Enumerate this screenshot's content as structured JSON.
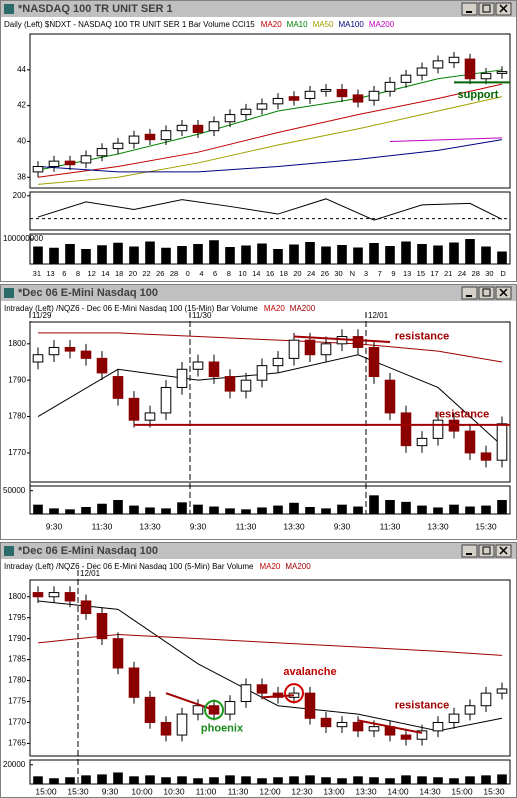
{
  "chart_data": [
    {
      "type": "candlestick",
      "title": "*NASDAQ 100 TR UNIT SER 1",
      "header": "Daily (Left)  $NDXT - NASDAQ 100 TR UNIT SER 1  Bar  Volume  CCI15",
      "candles": {
        "open": [
          38.3,
          38.6,
          38.9,
          38.8,
          39.2,
          39.6,
          39.9,
          40.4,
          40.1,
          40.6,
          40.9,
          40.6,
          41.1,
          41.5,
          41.8,
          42.1,
          42.5,
          42.4,
          42.8,
          42.9,
          42.6,
          42.3,
          42.8,
          43.3,
          43.7,
          44.1,
          44.4,
          44.6,
          43.5,
          43.8
        ],
        "high": [
          38.9,
          39.2,
          39.2,
          39.5,
          39.9,
          40.2,
          40.6,
          40.7,
          40.9,
          41.2,
          41.2,
          41.4,
          41.8,
          42.1,
          42.4,
          42.7,
          42.8,
          43.1,
          43.2,
          43.2,
          42.9,
          43.1,
          43.6,
          44.0,
          44.4,
          44.8,
          45.0,
          44.9,
          44.1,
          44.2
        ],
        "low": [
          38.0,
          38.3,
          38.4,
          38.5,
          38.9,
          39.3,
          39.6,
          39.8,
          39.8,
          40.3,
          40.2,
          40.3,
          40.8,
          41.2,
          41.5,
          41.8,
          42.0,
          42.1,
          42.5,
          42.2,
          41.9,
          42.0,
          42.5,
          43.0,
          43.4,
          43.8,
          44.1,
          43.2,
          43.2,
          43.5
        ],
        "close": [
          38.6,
          38.9,
          38.7,
          39.2,
          39.6,
          39.9,
          40.3,
          40.1,
          40.6,
          40.9,
          40.5,
          41.1,
          41.5,
          41.8,
          42.1,
          42.4,
          42.3,
          42.8,
          42.9,
          42.5,
          42.2,
          42.8,
          43.3,
          43.7,
          44.1,
          44.5,
          44.7,
          43.5,
          43.8,
          43.9
        ]
      },
      "series": [
        {
          "name": "MA20",
          "color": "#c00000",
          "x": [
            0,
            5,
            10,
            15,
            20,
            25,
            29
          ],
          "values": [
            38.0,
            38.6,
            39.4,
            40.5,
            41.5,
            42.4,
            43.2
          ]
        },
        {
          "name": "MA10",
          "color": "#008000",
          "x": [
            0,
            5,
            10,
            15,
            20,
            25,
            29
          ],
          "values": [
            38.4,
            39.3,
            40.4,
            41.7,
            42.4,
            43.5,
            44.0
          ]
        },
        {
          "name": "MA50",
          "color": "#a0a000",
          "x": [
            0,
            5,
            10,
            15,
            20,
            25,
            29
          ],
          "values": [
            37.6,
            38.0,
            38.8,
            39.8,
            40.7,
            41.7,
            42.5
          ]
        },
        {
          "name": "MA100",
          "color": "#000080",
          "x": [
            0,
            5,
            10,
            15,
            20,
            25,
            29
          ],
          "values": [
            38.6,
            38.3,
            38.3,
            38.6,
            39.0,
            39.5,
            40.1
          ]
        },
        {
          "name": "MA200",
          "color": "#c000c0",
          "x": [
            22,
            29
          ],
          "values": [
            40.0,
            40.2
          ]
        }
      ],
      "ylim": [
        37.4,
        46
      ],
      "yticks": [
        38,
        40,
        42,
        44
      ],
      "cci": {
        "x": [
          0,
          3,
          6,
          9,
          12,
          15,
          18,
          21,
          24,
          27,
          29
        ],
        "values": [
          -80,
          120,
          20,
          150,
          60,
          -40,
          160,
          -120,
          80,
          100,
          -110
        ],
        "ylim": [
          -250,
          250
        ],
        "yticks": [
          200
        ],
        "dashed": -100
      },
      "volume": [
        70000000,
        65000000,
        80000000,
        60000000,
        75000000,
        85000000,
        70000000,
        90000000,
        65000000,
        72000000,
        80000000,
        95000000,
        68000000,
        74000000,
        82000000,
        60000000,
        78000000,
        88000000,
        70000000,
        76000000,
        66000000,
        84000000,
        72000000,
        90000000,
        80000000,
        74000000,
        86000000,
        100000000,
        70000000,
        50000000
      ],
      "volume_ylim": [
        0,
        120000000
      ],
      "volume_ticks": [
        100000000
      ],
      "x_labels": [
        "31",
        "13",
        "6",
        "8",
        "12",
        "14",
        "18",
        "20",
        "22",
        "26",
        "28",
        "0",
        "4",
        "6",
        "8",
        "10",
        "14",
        "16",
        "18",
        "20",
        "24",
        "26",
        "30",
        "N",
        "3",
        "7",
        "9",
        "13",
        "15",
        "17",
        "21",
        "24",
        "28",
        "30",
        "D"
      ],
      "date_labels": [],
      "lines": [
        {
          "x": [
            26,
            29.5
          ],
          "y": [
            43.3,
            43.3
          ],
          "color": "#006400"
        }
      ],
      "annotations": [
        {
          "text": "support",
          "x": 27.5,
          "y": 42.6,
          "color": "#006400"
        }
      ],
      "circles": []
    },
    {
      "type": "candlestick",
      "title": "*Dec 06  E-Mini Nasdaq 100",
      "header": "Intraday (Left)  /NQZ6 - Dec 06  E-Mini Nasdaq 100 (15-Min)  Bar  Volume",
      "candles": {
        "open": [
          1795,
          1797,
          1799,
          1798,
          1796,
          1791,
          1785,
          1779,
          1781,
          1788,
          1793,
          1795,
          1791,
          1787,
          1790,
          1794,
          1796,
          1801,
          1797,
          1800,
          1802,
          1799,
          1790,
          1781,
          1772,
          1774,
          1779,
          1776,
          1770,
          1768
        ],
        "high": [
          1799,
          1801,
          1801,
          1800,
          1798,
          1793,
          1787,
          1783,
          1790,
          1795,
          1797,
          1797,
          1793,
          1792,
          1796,
          1798,
          1803,
          1803,
          1802,
          1804,
          1804,
          1801,
          1792,
          1783,
          1776,
          1781,
          1781,
          1778,
          1772,
          1780
        ],
        "low": [
          1793,
          1795,
          1796,
          1794,
          1790,
          1783,
          1777,
          1777,
          1779,
          1786,
          1791,
          1789,
          1785,
          1785,
          1788,
          1792,
          1794,
          1795,
          1795,
          1798,
          1797,
          1789,
          1779,
          1770,
          1770,
          1772,
          1774,
          1768,
          1766,
          1766
        ],
        "close": [
          1797,
          1799,
          1798,
          1796,
          1792,
          1785,
          1779,
          1781,
          1788,
          1793,
          1795,
          1791,
          1787,
          1790,
          1794,
          1796,
          1801,
          1797,
          1800,
          1802,
          1799,
          1791,
          1781,
          1772,
          1774,
          1779,
          1776,
          1770,
          1768,
          1778
        ]
      },
      "series": [
        {
          "name": "MA20",
          "color": "#000000",
          "x": [
            0,
            5,
            10,
            15,
            20,
            25,
            29
          ],
          "values": [
            1780,
            1793,
            1790,
            1792,
            1797,
            1788,
            1772
          ]
        },
        {
          "name": "MA200",
          "color": "#a00000",
          "x": [
            0,
            5,
            10,
            15,
            20,
            25,
            29
          ],
          "values": [
            1803,
            1803,
            1802,
            1801,
            1800,
            1798,
            1795
          ]
        }
      ],
      "ylim": [
        1762,
        1806
      ],
      "yticks": [
        1770,
        1780,
        1790,
        1800
      ],
      "volume": [
        20000,
        12000,
        10000,
        15000,
        22000,
        30000,
        18000,
        14000,
        12000,
        25000,
        20000,
        16000,
        12000,
        10000,
        14000,
        18000,
        24000,
        15000,
        12000,
        20000,
        16000,
        40000,
        30000,
        26000,
        18000,
        14000,
        20000,
        16000,
        18000,
        30000
      ],
      "volume_ylim": [
        0,
        60000
      ],
      "volume_ticks": [
        50000
      ],
      "x_labels": [
        "9:30",
        "11:30",
        "13:30",
        "9:30",
        "11:30",
        "13:30",
        "9:30",
        "11:30",
        "13:30",
        "15:30"
      ],
      "date_labels": [
        {
          "label": "11/29",
          "at": 0
        },
        {
          "label": "11/30",
          "at": 10
        },
        {
          "label": "12/01",
          "at": 21
        }
      ],
      "lines": [
        {
          "x": [
            16,
            22
          ],
          "y": [
            1802,
            1800.5
          ],
          "color": "#a00000"
        },
        {
          "x": [
            6,
            29.5
          ],
          "y": [
            1777.7,
            1777.7
          ],
          "color": "#a00000"
        }
      ],
      "annotations": [
        {
          "text": "resistance",
          "x": 24,
          "y": 1802,
          "color": "#a00000"
        },
        {
          "text": "resistance",
          "x": 26.5,
          "y": 1780.5,
          "color": "#a00000"
        }
      ],
      "circles": []
    },
    {
      "type": "candlestick",
      "title": "*Dec 06  E-Mini Nasdaq 100",
      "header": "Intraday (Left)  /NQZ6 - Dec 06  E-Mini Nasdaq 100 (5-Min)  Bar  Volume",
      "candles": {
        "open": [
          1801,
          1800,
          1801,
          1799,
          1796,
          1790,
          1783,
          1776,
          1770,
          1767,
          1772,
          1774,
          1772,
          1775,
          1779,
          1777,
          1776,
          1777,
          1771,
          1769,
          1770,
          1768,
          1769,
          1767,
          1766,
          1768,
          1770,
          1772,
          1774,
          1777
        ],
        "high": [
          1802.5,
          1802.5,
          1802.5,
          1800.5,
          1797.5,
          1791.5,
          1784.5,
          1777.5,
          1771.5,
          1773.5,
          1775.5,
          1775.5,
          1776.5,
          1780.5,
          1780.5,
          1778.5,
          1778.5,
          1778.5,
          1772.5,
          1771.5,
          1771.5,
          1770.5,
          1770.5,
          1768.5,
          1769.5,
          1771.5,
          1773.5,
          1775.5,
          1778.5,
          1779.5
        ],
        "low": [
          1798.5,
          1798.5,
          1797.5,
          1794.5,
          1788.5,
          1781.5,
          1774.5,
          1768.5,
          1765.5,
          1765.5,
          1770.5,
          1770.5,
          1770.5,
          1773.5,
          1775.5,
          1774.5,
          1774.5,
          1769.5,
          1767.5,
          1767.5,
          1766.5,
          1766.5,
          1765.5,
          1764.5,
          1764.5,
          1766.5,
          1768.5,
          1770.5,
          1772.5,
          1775.5
        ],
        "close": [
          1800,
          1801,
          1799,
          1796,
          1790,
          1783,
          1776,
          1770,
          1767,
          1772,
          1774,
          1772,
          1775,
          1779,
          1777,
          1776,
          1777,
          1771,
          1769,
          1770,
          1768,
          1769,
          1767,
          1766,
          1768,
          1770,
          1772,
          1774,
          1777,
          1778
        ]
      },
      "series": [
        {
          "name": "MA20",
          "color": "#000000",
          "x": [
            0,
            5,
            10,
            15,
            20,
            25,
            29
          ],
          "values": [
            1799,
            1797,
            1784,
            1774,
            1772,
            1768,
            1771
          ]
        },
        {
          "name": "MA200",
          "color": "#a00000",
          "x": [
            0,
            5,
            10,
            15,
            20,
            25,
            29
          ],
          "values": [
            1789,
            1791,
            1790,
            1789,
            1788,
            1787,
            1786
          ]
        }
      ],
      "ylim": [
        1762,
        1804
      ],
      "yticks": [
        1765,
        1770,
        1775,
        1780,
        1785,
        1790,
        1795,
        1800
      ],
      "volume": [
        8000,
        6000,
        7000,
        9000,
        10000,
        12000,
        8000,
        9000,
        7000,
        8000,
        6000,
        7000,
        9000,
        8000,
        6000,
        7000,
        8000,
        9000,
        7000,
        6000,
        8000,
        7000,
        6000,
        9000,
        8000,
        7000,
        6000,
        8000,
        9000,
        10000
      ],
      "volume_ylim": [
        0,
        25000
      ],
      "volume_ticks": [
        20000
      ],
      "x_labels": [
        "15:00",
        "15:30",
        "9:30",
        "10:00",
        "10:30",
        "11:00",
        "11:30",
        "12:00",
        "12:30",
        "13:00",
        "13:30",
        "14:00",
        "14:30",
        "15:00",
        "15:30"
      ],
      "date_labels": [
        {
          "label": "12/01",
          "at": 3
        }
      ],
      "lines": [
        {
          "x": [
            8,
            11
          ],
          "y": [
            1777,
            1773
          ],
          "color": "#a00000"
        },
        {
          "x": [
            14,
            16
          ],
          "y": [
            1776,
            1776.5
          ],
          "color": "#a00000"
        },
        {
          "x": [
            20,
            24
          ],
          "y": [
            1770.5,
            1767.5
          ],
          "color": "#a00000"
        }
      ],
      "annotations": [
        {
          "text": "phoenix",
          "x": 11.5,
          "y": 1768.5,
          "color": "#1a8a1a"
        },
        {
          "text": "avalanche",
          "x": 17,
          "y": 1782,
          "color": "#c00000"
        },
        {
          "text": "resistance",
          "x": 24,
          "y": 1774,
          "color": "#a00000"
        }
      ],
      "circles": [
        {
          "x": 11,
          "y": 1773,
          "color": "#1a9a1a"
        },
        {
          "x": 16,
          "y": 1777,
          "color": "#d00000"
        }
      ]
    }
  ]
}
